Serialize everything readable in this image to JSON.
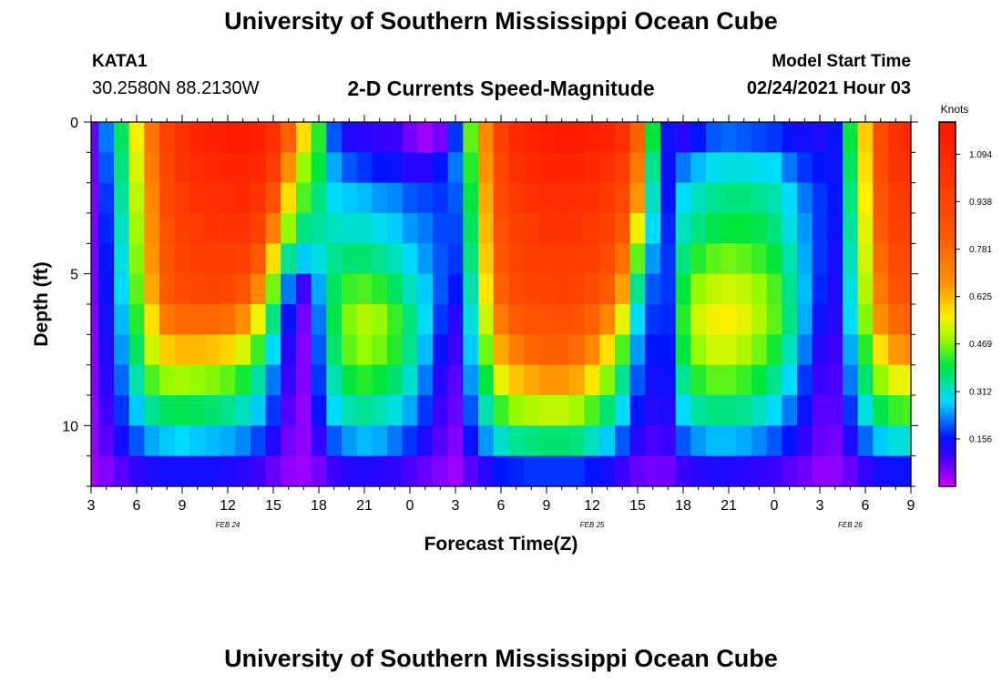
{
  "header": {
    "title": "University of Southern Mississippi Ocean Cube",
    "station_id": "KATA1",
    "station_coords": "30.2580N 88.2130W",
    "chart_title": "2-D Currents Speed-Magnitude",
    "model_start_label": "Model Start Time",
    "model_start_value": "02/24/2021 Hour 03"
  },
  "footer": {
    "title": "University of Southern Mississippi Ocean Cube"
  },
  "chart_data": {
    "type": "heatmap",
    "title": "2-D Currents Speed-Magnitude",
    "xlabel": "Forecast Time(Z)",
    "ylabel": "Depth (ft)",
    "x_range_hours": [
      0,
      54
    ],
    "x_tick_labels": [
      "3",
      "6",
      "9",
      "12",
      "15",
      "18",
      "21",
      "0",
      "3",
      "6",
      "9",
      "12",
      "15",
      "18",
      "21",
      "0",
      "3",
      "6",
      "9"
    ],
    "date_labels": [
      {
        "label": "FEB 24",
        "hour": 9
      },
      {
        "label": "FEB 25",
        "hour": 33
      },
      {
        "label": "FEB 26",
        "hour": 50
      }
    ],
    "y_range_ft": [
      0,
      12
    ],
    "y_tick_labels": [
      "0",
      "5",
      "10"
    ],
    "y_tick_values": [
      0,
      5,
      10
    ],
    "colorbar": {
      "label": "Knots",
      "min": 0,
      "max": 1.2,
      "tick_labels": [
        "0.156",
        "0.312",
        "0.469",
        "0.625",
        "0.781",
        "0.938",
        "1.094"
      ],
      "tick_values": [
        0.156,
        0.312,
        0.469,
        0.625,
        0.781,
        0.938,
        1.094
      ]
    },
    "depth_ft": [
      0.5,
      1.5,
      2.5,
      3.5,
      4.5,
      5.5,
      6.5,
      7.5,
      8.5,
      9.5,
      10.5,
      11.5
    ],
    "hours": [
      0,
      1,
      2,
      3,
      4,
      5,
      6,
      7,
      8,
      9,
      10,
      11,
      12,
      13,
      14,
      15,
      16,
      17,
      18,
      19,
      20,
      21,
      22,
      23,
      24,
      25,
      26,
      27,
      28,
      29,
      30,
      31,
      32,
      33,
      34,
      35,
      36,
      37,
      38,
      39,
      40,
      41,
      42,
      43,
      44,
      45,
      46,
      47,
      48,
      49,
      50,
      51,
      52,
      53,
      54
    ],
    "speed_knots_rows": [
      [
        0.07,
        0.22,
        0.38,
        0.55,
        0.75,
        0.95,
        1.05,
        1.1,
        1.13,
        1.15,
        1.15,
        1.13,
        1.05,
        0.8,
        0.58,
        0.42,
        0.2,
        0.13,
        0.12,
        0.11,
        0.1,
        0.06,
        0.03,
        0.06,
        0.18,
        0.45,
        0.7,
        0.95,
        1.08,
        1.12,
        1.14,
        1.15,
        1.15,
        1.14,
        1.12,
        1.05,
        0.8,
        0.4,
        0.15,
        0.12,
        0.16,
        0.2,
        0.21,
        0.2,
        0.19,
        0.18,
        0.15,
        0.14,
        0.13,
        0.15,
        0.4,
        0.6,
        0.9,
        1.05,
        1.1
      ],
      [
        0.07,
        0.2,
        0.36,
        0.53,
        0.73,
        0.92,
        1.02,
        1.07,
        1.09,
        1.1,
        1.11,
        1.08,
        0.97,
        0.68,
        0.48,
        0.4,
        0.25,
        0.2,
        0.18,
        0.16,
        0.15,
        0.12,
        0.12,
        0.16,
        0.22,
        0.42,
        0.67,
        0.92,
        1.04,
        1.08,
        1.1,
        1.11,
        1.1,
        1.08,
        1.05,
        0.97,
        0.74,
        0.35,
        0.15,
        0.22,
        0.26,
        0.29,
        0.3,
        0.3,
        0.29,
        0.28,
        0.22,
        0.18,
        0.16,
        0.15,
        0.38,
        0.58,
        0.88,
        1.02,
        1.05
      ],
      [
        0.06,
        0.18,
        0.34,
        0.51,
        0.7,
        0.9,
        0.99,
        1.04,
        1.06,
        1.07,
        1.08,
        1.02,
        0.86,
        0.58,
        0.44,
        0.36,
        0.28,
        0.27,
        0.26,
        0.24,
        0.23,
        0.2,
        0.19,
        0.18,
        0.2,
        0.4,
        0.64,
        0.9,
        1.0,
        1.04,
        1.06,
        1.07,
        1.06,
        1.05,
        1.0,
        0.92,
        0.66,
        0.32,
        0.16,
        0.28,
        0.32,
        0.35,
        0.36,
        0.36,
        0.35,
        0.33,
        0.28,
        0.22,
        0.18,
        0.16,
        0.36,
        0.56,
        0.85,
        0.98,
        1.0
      ],
      [
        0.06,
        0.17,
        0.32,
        0.49,
        0.68,
        0.87,
        0.96,
        1.0,
        1.02,
        1.03,
        1.03,
        0.95,
        0.72,
        0.48,
        0.36,
        0.34,
        0.32,
        0.31,
        0.31,
        0.29,
        0.27,
        0.24,
        0.22,
        0.19,
        0.19,
        0.38,
        0.62,
        0.87,
        0.96,
        1.0,
        1.02,
        1.03,
        1.02,
        1.0,
        0.95,
        0.84,
        0.55,
        0.28,
        0.17,
        0.32,
        0.36,
        0.39,
        0.4,
        0.4,
        0.39,
        0.36,
        0.3,
        0.24,
        0.18,
        0.15,
        0.34,
        0.54,
        0.82,
        0.95,
        0.96
      ],
      [
        0.06,
        0.16,
        0.3,
        0.47,
        0.66,
        0.85,
        0.93,
        0.97,
        0.98,
        0.98,
        0.96,
        0.83,
        0.58,
        0.35,
        0.27,
        0.3,
        0.35,
        0.37,
        0.37,
        0.35,
        0.32,
        0.28,
        0.24,
        0.2,
        0.18,
        0.36,
        0.6,
        0.84,
        0.93,
        0.97,
        0.98,
        0.99,
        0.98,
        0.96,
        0.9,
        0.76,
        0.45,
        0.24,
        0.18,
        0.36,
        0.42,
        0.45,
        0.46,
        0.45,
        0.43,
        0.4,
        0.33,
        0.25,
        0.18,
        0.14,
        0.32,
        0.52,
        0.78,
        0.9,
        0.92
      ],
      [
        0.06,
        0.15,
        0.28,
        0.45,
        0.64,
        0.82,
        0.89,
        0.92,
        0.93,
        0.92,
        0.85,
        0.7,
        0.46,
        0.22,
        0.1,
        0.25,
        0.38,
        0.43,
        0.44,
        0.42,
        0.38,
        0.32,
        0.27,
        0.2,
        0.16,
        0.33,
        0.57,
        0.8,
        0.89,
        0.93,
        0.94,
        0.95,
        0.94,
        0.9,
        0.82,
        0.65,
        0.35,
        0.2,
        0.18,
        0.4,
        0.48,
        0.51,
        0.52,
        0.51,
        0.48,
        0.44,
        0.35,
        0.26,
        0.17,
        0.13,
        0.3,
        0.5,
        0.74,
        0.86,
        0.88
      ],
      [
        0.05,
        0.14,
        0.26,
        0.42,
        0.58,
        0.74,
        0.78,
        0.79,
        0.79,
        0.77,
        0.68,
        0.55,
        0.36,
        0.15,
        0.06,
        0.22,
        0.39,
        0.47,
        0.5,
        0.48,
        0.43,
        0.36,
        0.28,
        0.18,
        0.12,
        0.3,
        0.52,
        0.73,
        0.82,
        0.86,
        0.87,
        0.88,
        0.86,
        0.8,
        0.7,
        0.54,
        0.28,
        0.18,
        0.17,
        0.42,
        0.52,
        0.55,
        0.56,
        0.54,
        0.5,
        0.45,
        0.36,
        0.25,
        0.15,
        0.12,
        0.28,
        0.47,
        0.68,
        0.78,
        0.8
      ],
      [
        0.05,
        0.13,
        0.24,
        0.38,
        0.52,
        0.6,
        0.62,
        0.62,
        0.61,
        0.59,
        0.53,
        0.43,
        0.28,
        0.12,
        0.05,
        0.2,
        0.37,
        0.45,
        0.48,
        0.46,
        0.42,
        0.35,
        0.26,
        0.15,
        0.1,
        0.27,
        0.46,
        0.64,
        0.73,
        0.78,
        0.8,
        0.8,
        0.78,
        0.7,
        0.58,
        0.44,
        0.24,
        0.16,
        0.16,
        0.4,
        0.48,
        0.52,
        0.52,
        0.5,
        0.46,
        0.41,
        0.32,
        0.22,
        0.12,
        0.1,
        0.25,
        0.42,
        0.58,
        0.66,
        0.68
      ],
      [
        0.05,
        0.12,
        0.21,
        0.33,
        0.44,
        0.48,
        0.49,
        0.48,
        0.47,
        0.45,
        0.41,
        0.34,
        0.22,
        0.1,
        0.05,
        0.18,
        0.33,
        0.4,
        0.42,
        0.4,
        0.37,
        0.31,
        0.22,
        0.12,
        0.08,
        0.24,
        0.4,
        0.54,
        0.61,
        0.64,
        0.66,
        0.66,
        0.64,
        0.57,
        0.47,
        0.35,
        0.2,
        0.14,
        0.15,
        0.35,
        0.42,
        0.45,
        0.45,
        0.43,
        0.4,
        0.35,
        0.28,
        0.18,
        0.1,
        0.09,
        0.22,
        0.37,
        0.48,
        0.54,
        0.55
      ],
      [
        0.04,
        0.1,
        0.18,
        0.27,
        0.35,
        0.38,
        0.39,
        0.38,
        0.37,
        0.35,
        0.32,
        0.27,
        0.18,
        0.08,
        0.04,
        0.15,
        0.28,
        0.33,
        0.35,
        0.33,
        0.3,
        0.25,
        0.18,
        0.1,
        0.07,
        0.2,
        0.33,
        0.43,
        0.48,
        0.5,
        0.51,
        0.51,
        0.49,
        0.44,
        0.37,
        0.28,
        0.16,
        0.12,
        0.13,
        0.28,
        0.34,
        0.36,
        0.36,
        0.35,
        0.32,
        0.28,
        0.22,
        0.15,
        0.08,
        0.08,
        0.18,
        0.3,
        0.39,
        0.43,
        0.44
      ],
      [
        0.04,
        0.08,
        0.14,
        0.2,
        0.25,
        0.27,
        0.28,
        0.27,
        0.26,
        0.25,
        0.23,
        0.19,
        0.13,
        0.06,
        0.04,
        0.11,
        0.2,
        0.24,
        0.26,
        0.25,
        0.22,
        0.18,
        0.13,
        0.08,
        0.05,
        0.15,
        0.24,
        0.31,
        0.35,
        0.36,
        0.37,
        0.37,
        0.36,
        0.32,
        0.27,
        0.2,
        0.12,
        0.09,
        0.1,
        0.2,
        0.24,
        0.26,
        0.26,
        0.25,
        0.23,
        0.2,
        0.16,
        0.11,
        0.07,
        0.06,
        0.13,
        0.21,
        0.27,
        0.3,
        0.31
      ],
      [
        0.03,
        0.05,
        0.08,
        0.11,
        0.13,
        0.14,
        0.14,
        0.14,
        0.14,
        0.13,
        0.12,
        0.1,
        0.07,
        0.04,
        0.03,
        0.06,
        0.1,
        0.12,
        0.13,
        0.12,
        0.11,
        0.09,
        0.07,
        0.05,
        0.03,
        0.08,
        0.12,
        0.16,
        0.17,
        0.18,
        0.18,
        0.18,
        0.18,
        0.16,
        0.14,
        0.1,
        0.07,
        0.06,
        0.06,
        0.1,
        0.12,
        0.13,
        0.13,
        0.12,
        0.11,
        0.1,
        0.08,
        0.06,
        0.04,
        0.04,
        0.07,
        0.11,
        0.14,
        0.15,
        0.15
      ]
    ]
  }
}
